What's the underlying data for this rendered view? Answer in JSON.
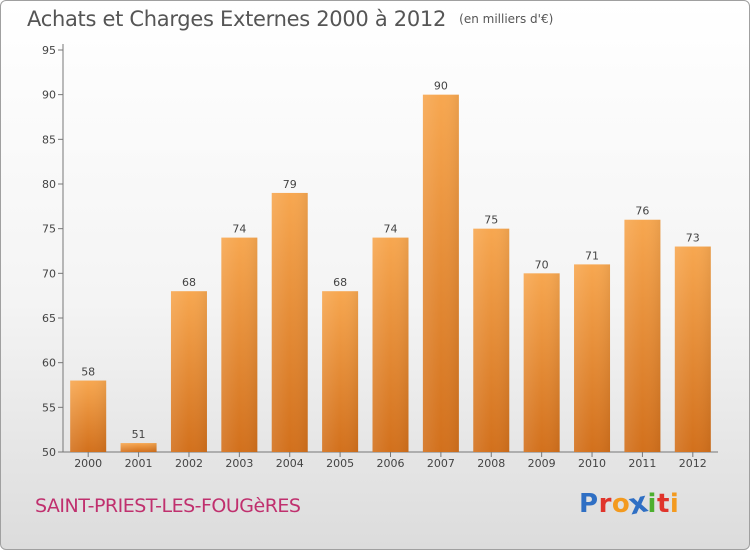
{
  "header": {
    "title": "Achats et Charges Externes 2000 à 2012",
    "unit": "(en milliers d'€)"
  },
  "footer": {
    "commune": "SAINT-PRIEST-LES-FOUGèRES",
    "logo_letters": [
      "P",
      "r",
      "o",
      "x",
      "i",
      "t",
      "i"
    ],
    "logo_colors": [
      "#2f6fc4",
      "#e0342b",
      "#f39a1f",
      "#2f6fc4",
      "#4caf2e",
      "#e0342b",
      "#f39a1f"
    ]
  },
  "chart_data": {
    "type": "bar",
    "title": "Achats et Charges Externes 2000 à 2012",
    "subtitle": "(en milliers d'€)",
    "categories": [
      "2000",
      "2001",
      "2002",
      "2003",
      "2004",
      "2005",
      "2006",
      "2007",
      "2008",
      "2009",
      "2010",
      "2011",
      "2012"
    ],
    "values": [
      58,
      51,
      68,
      74,
      79,
      68,
      74,
      90,
      75,
      70,
      71,
      76,
      73
    ],
    "ylim": [
      50,
      95
    ],
    "yticks": [
      50,
      55,
      60,
      65,
      70,
      75,
      80,
      85,
      90,
      95
    ],
    "grid": false,
    "bar_color": "#f29a3c",
    "bar_color_dark": "#d8731e"
  }
}
